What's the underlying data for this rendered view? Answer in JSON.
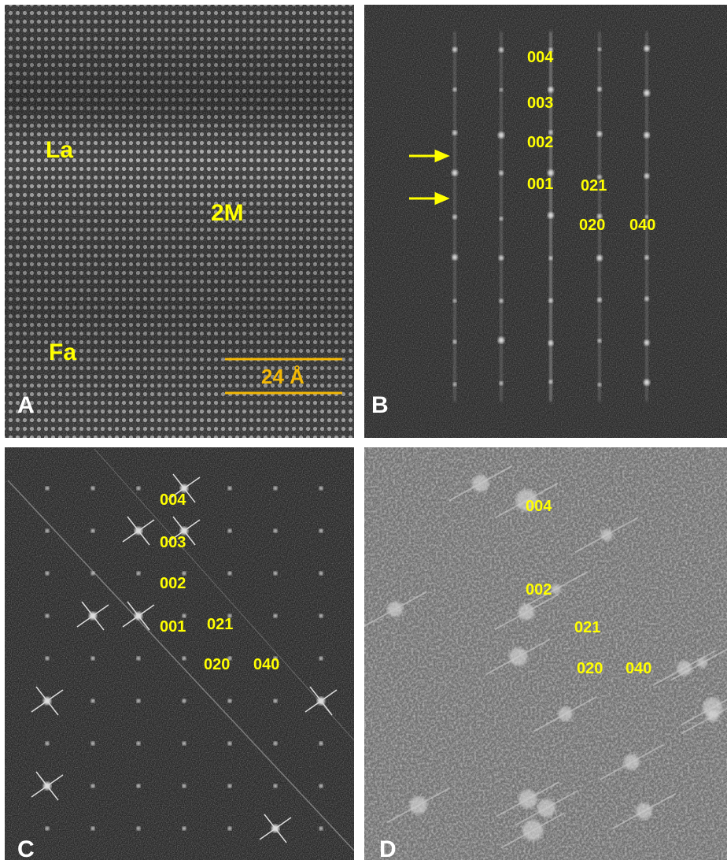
{
  "panels": [
    {
      "letter": "A",
      "labels": [
        "La",
        "2M",
        "Fa"
      ],
      "scale_bar": "24 Å"
    },
    {
      "letter": "B",
      "labels": [
        "004",
        "003",
        "002",
        "001",
        "021",
        "020",
        "040"
      ]
    },
    {
      "letter": "C",
      "labels": [
        "004",
        "003",
        "002",
        "001",
        "021",
        "020",
        "040"
      ]
    },
    {
      "letter": "D",
      "labels": [
        "004",
        "002",
        "021",
        "020",
        "040"
      ]
    }
  ]
}
